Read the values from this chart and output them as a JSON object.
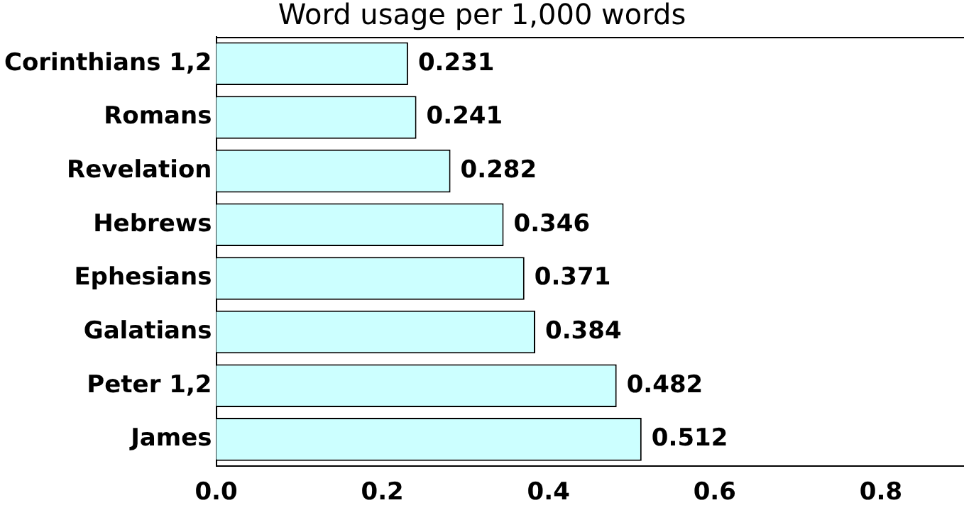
{
  "chart_data": {
    "type": "bar",
    "orientation": "horizontal",
    "title": "Word usage per 1,000 words",
    "categories": [
      "Corinthians 1,2",
      "Romans",
      "Revelation",
      "Hebrews",
      "Ephesians",
      "Galatians",
      "Peter 1,2",
      "James"
    ],
    "values": [
      0.231,
      0.241,
      0.282,
      0.346,
      0.371,
      0.384,
      0.482,
      0.512
    ],
    "color": "#ccffff",
    "xlim": [
      0,
      0.9
    ],
    "xticks": [
      {
        "value": 0,
        "label": "0.0"
      },
      {
        "value": 0.2,
        "label": "0.2"
      },
      {
        "value": 0.4,
        "label": "0.4"
      },
      {
        "value": 0.6,
        "label": "0.6"
      },
      {
        "value": 0.8,
        "label": "0.8"
      }
    ],
    "data_labels": true,
    "grid": false,
    "legend": false
  }
}
